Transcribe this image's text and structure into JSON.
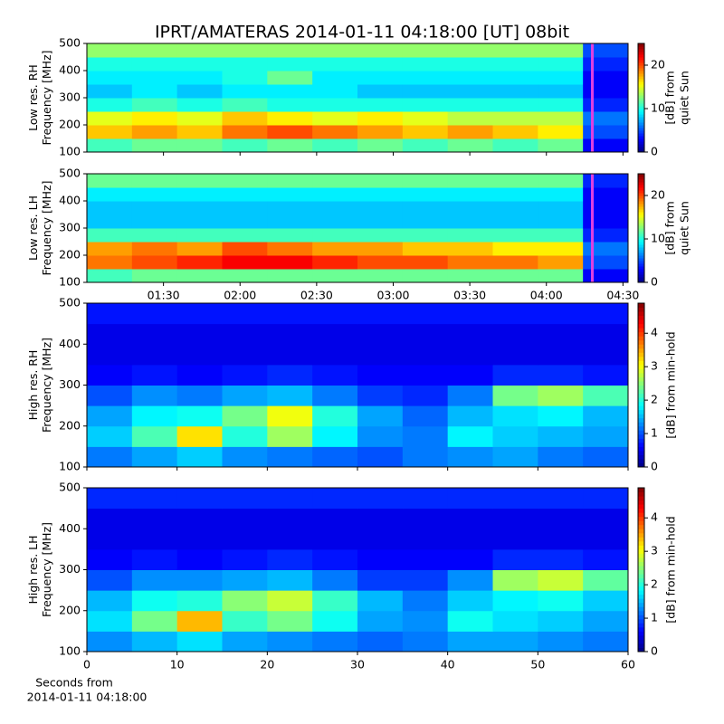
{
  "chart_data": [
    {
      "type": "heatmap",
      "title": "IPRT/AMATERAS 2014-01-11 04:18:00 [UT]   08bit",
      "ylabel": [
        "Low res. RH",
        "Frequency [MHz]"
      ],
      "colorbar_label": [
        "[dB] from",
        "quiet Sun"
      ],
      "xlim": [
        60,
        272
      ],
      "xticks": [
        90,
        120,
        150,
        180,
        210,
        240,
        270
      ],
      "xticklabels": false,
      "ylim": [
        100,
        500
      ],
      "yticks": [
        100,
        200,
        300,
        400,
        500
      ],
      "clim": [
        0,
        25
      ],
      "cticks": [
        0,
        10,
        20
      ],
      "colormap": "jet",
      "marker_x": 258,
      "marker_color": "#e040e0",
      "z": [
        [
          11,
          12,
          12,
          11,
          12,
          11,
          12,
          11,
          12,
          11,
          12,
          3
        ],
        [
          17,
          18,
          17,
          19,
          20,
          19,
          18,
          17,
          18,
          17,
          16,
          5
        ],
        [
          15,
          16,
          15,
          17,
          16,
          15,
          16,
          15,
          14,
          14,
          14,
          6
        ],
        [
          10,
          11,
          10,
          11,
          10,
          10,
          10,
          10,
          10,
          10,
          10,
          4
        ],
        [
          8,
          9,
          8,
          9,
          9,
          9,
          8,
          8,
          8,
          8,
          8,
          3
        ],
        [
          9,
          9,
          9,
          10,
          12,
          9,
          9,
          9,
          9,
          9,
          9,
          3
        ],
        [
          10,
          10,
          10,
          10,
          10,
          10,
          10,
          10,
          10,
          10,
          10,
          4
        ],
        [
          13,
          13,
          13,
          13,
          13,
          13,
          13,
          13,
          13,
          13,
          13,
          5
        ]
      ]
    },
    {
      "type": "heatmap",
      "ylabel": [
        "Low res. LH",
        "Frequency [MHz]"
      ],
      "colorbar_label": [
        "[dB] from",
        "quiet Sun"
      ],
      "xlim": [
        60,
        272
      ],
      "xticks": [
        {
          "value": 90,
          "label": "01:30"
        },
        {
          "value": 120,
          "label": "02:00"
        },
        {
          "value": 150,
          "label": "02:30"
        },
        {
          "value": 180,
          "label": "03:00"
        },
        {
          "value": 210,
          "label": "03:30"
        },
        {
          "value": 240,
          "label": "04:00"
        },
        {
          "value": 270,
          "label": "04:30"
        }
      ],
      "xticklabels": true,
      "ylim": [
        100,
        500
      ],
      "yticks": [
        100,
        200,
        300,
        400,
        500
      ],
      "clim": [
        0,
        25
      ],
      "cticks": [
        0,
        10,
        20
      ],
      "colormap": "jet",
      "marker_x": 258,
      "marker_color": "#e040e0",
      "z": [
        [
          11,
          12,
          12,
          12,
          12,
          12,
          12,
          12,
          12,
          12,
          12,
          3
        ],
        [
          19,
          20,
          21,
          22,
          22,
          21,
          20,
          20,
          19,
          19,
          18,
          5
        ],
        [
          18,
          19,
          18,
          20,
          19,
          18,
          18,
          17,
          17,
          16,
          16,
          6
        ],
        [
          11,
          11,
          11,
          11,
          11,
          11,
          11,
          11,
          11,
          11,
          11,
          4
        ],
        [
          8,
          8,
          8,
          8,
          8,
          8,
          8,
          8,
          8,
          8,
          8,
          3
        ],
        [
          8,
          8,
          8,
          8,
          8,
          8,
          8,
          8,
          8,
          8,
          8,
          3
        ],
        [
          9,
          9,
          9,
          9,
          9,
          9,
          9,
          9,
          9,
          9,
          9,
          3
        ],
        [
          12,
          12,
          12,
          12,
          12,
          12,
          12,
          12,
          12,
          12,
          12,
          4
        ]
      ]
    },
    {
      "type": "heatmap",
      "ylabel": [
        "High res. RH",
        "Frequency [MHz]"
      ],
      "colorbar_label": [
        "[dB] from min-hold"
      ],
      "xlim": [
        0,
        60
      ],
      "xticks": [
        0,
        10,
        20,
        30,
        40,
        50,
        60
      ],
      "xticklabels": false,
      "ylim": [
        100,
        500
      ],
      "yticks": [
        100,
        200,
        300,
        400,
        500
      ],
      "clim": [
        0,
        4.9
      ],
      "cticks": [
        0,
        1,
        2,
        3,
        4
      ],
      "colormap": "jet",
      "z": [
        [
          1.2,
          1.4,
          1.6,
          1.3,
          1.2,
          1.1,
          1.0,
          1.2,
          1.3,
          1.4,
          1.2,
          1.1
        ],
        [
          1.6,
          2.2,
          3.2,
          2.0,
          2.6,
          1.8,
          1.3,
          1.2,
          1.8,
          1.6,
          1.5,
          1.4
        ],
        [
          1.4,
          1.8,
          1.9,
          2.4,
          3.0,
          2.0,
          1.4,
          1.1,
          1.5,
          1.7,
          1.8,
          1.5
        ],
        [
          1.0,
          1.3,
          1.2,
          1.4,
          1.5,
          1.2,
          0.9,
          0.8,
          1.2,
          2.4,
          2.6,
          2.2
        ],
        [
          0.6,
          0.7,
          0.6,
          0.7,
          0.8,
          0.7,
          0.6,
          0.6,
          0.6,
          0.8,
          0.8,
          0.7
        ],
        [
          0.5,
          0.5,
          0.5,
          0.5,
          0.5,
          0.5,
          0.5,
          0.5,
          0.5,
          0.5,
          0.5,
          0.5
        ],
        [
          0.5,
          0.5,
          0.5,
          0.5,
          0.5,
          0.5,
          0.5,
          0.5,
          0.5,
          0.5,
          0.5,
          0.5
        ],
        [
          0.7,
          0.7,
          0.7,
          0.7,
          0.7,
          0.7,
          0.7,
          0.7,
          0.7,
          0.7,
          0.7,
          0.7
        ]
      ]
    },
    {
      "type": "heatmap",
      "ylabel": [
        "High res. LH",
        "Frequency [MHz]"
      ],
      "colorbar_label": [
        "[dB] from min-hold"
      ],
      "xlabel": [
        "Seconds from",
        "2014-01-11 04:18:00"
      ],
      "xlim": [
        0,
        60
      ],
      "xticks": [
        0,
        10,
        20,
        30,
        40,
        50,
        60
      ],
      "xticklabels": true,
      "ylim": [
        100,
        500
      ],
      "yticks": [
        100,
        200,
        300,
        400,
        500
      ],
      "clim": [
        0,
        4.9
      ],
      "cticks": [
        0,
        1,
        2,
        3,
        4
      ],
      "colormap": "jet",
      "z": [
        [
          1.3,
          1.5,
          1.7,
          1.4,
          1.3,
          1.2,
          1.1,
          1.2,
          1.4,
          1.4,
          1.3,
          1.2
        ],
        [
          1.7,
          2.4,
          3.4,
          2.1,
          2.4,
          1.9,
          1.4,
          1.3,
          1.9,
          1.7,
          1.6,
          1.4
        ],
        [
          1.5,
          1.9,
          2.0,
          2.5,
          2.8,
          2.1,
          1.5,
          1.2,
          1.6,
          1.8,
          1.9,
          1.6
        ],
        [
          1.0,
          1.3,
          1.3,
          1.4,
          1.5,
          1.2,
          0.9,
          0.9,
          1.3,
          2.6,
          2.8,
          2.3
        ],
        [
          0.6,
          0.7,
          0.6,
          0.7,
          0.8,
          0.7,
          0.6,
          0.6,
          0.6,
          0.8,
          0.8,
          0.7
        ],
        [
          0.5,
          0.5,
          0.5,
          0.5,
          0.5,
          0.5,
          0.5,
          0.5,
          0.5,
          0.5,
          0.5,
          0.5
        ],
        [
          0.5,
          0.5,
          0.5,
          0.5,
          0.5,
          0.5,
          0.5,
          0.5,
          0.5,
          0.5,
          0.5,
          0.5
        ],
        [
          0.8,
          0.8,
          0.8,
          0.8,
          0.8,
          0.8,
          0.8,
          0.8,
          0.8,
          0.8,
          0.8,
          0.8
        ]
      ]
    }
  ]
}
